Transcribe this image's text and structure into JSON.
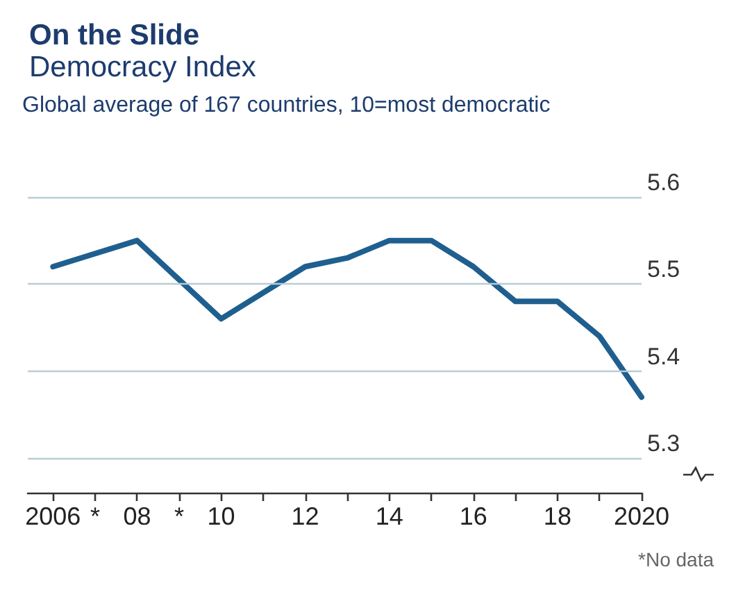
{
  "chart_data": {
    "type": "line",
    "title": "On the Slide",
    "subtitle": "Democracy Index",
    "ylabel": "Global average of 167 countries, 10=most democratic",
    "x": [
      2006,
      2008,
      2010,
      2012,
      2013,
      2014,
      2015,
      2016,
      2017,
      2018,
      2019,
      2020
    ],
    "series": [
      {
        "color": "#1f5f8f",
        "values": [
          5.52,
          5.55,
          5.46,
          5.52,
          5.53,
          5.55,
          5.55,
          5.52,
          5.48,
          5.48,
          5.44,
          5.37
        ]
      }
    ],
    "xlim": [
      2005.4,
      2020
    ],
    "xticks": [
      2006,
      {
        "value": 2007,
        "label": "*"
      },
      {
        "value": 2008,
        "label": "08"
      },
      {
        "value": 2009,
        "label": "*"
      },
      {
        "value": 2010,
        "label": "10"
      },
      {
        "value": 2011,
        "label": null
      },
      {
        "value": 2012,
        "label": "12"
      },
      {
        "value": 2013,
        "label": null
      },
      {
        "value": 2014,
        "label": "14"
      },
      {
        "value": 2015,
        "label": null
      },
      {
        "value": 2016,
        "label": "16"
      },
      {
        "value": 2017,
        "label": null
      },
      {
        "value": 2018,
        "label": "18"
      },
      {
        "value": 2019,
        "label": null
      },
      2020
    ],
    "ylim": [
      5.26,
      5.6
    ],
    "yticks": [
      5.3,
      5.4,
      5.5,
      5.6
    ],
    "grid": "y",
    "marker": "none",
    "line_style": "solid",
    "annotations": [
      "*No data"
    ]
  }
}
